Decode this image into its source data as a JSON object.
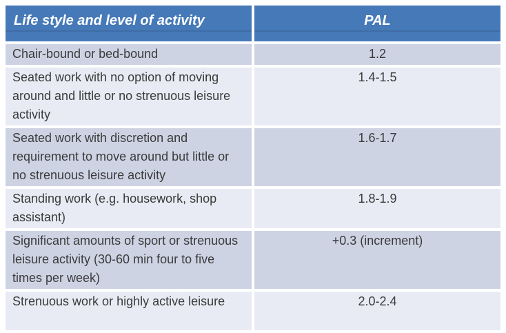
{
  "title": "Physical Activity Level (PAL) table",
  "colors": {
    "header_bg": "#4679B8",
    "header_bg_dark_line": "#3E6CA6",
    "header_text": "#FFFFFF",
    "row_odd_bg": "#CDD3E3",
    "row_even_bg": "#E8EBF3",
    "body_text": "#3B3B3B",
    "grid_gap": "#FFFFFF"
  },
  "table": {
    "columns": [
      {
        "label": "Life style and level of activity"
      },
      {
        "label": "PAL"
      }
    ],
    "rows": [
      {
        "activity": "Chair-bound or bed-bound",
        "pal": "1.2"
      },
      {
        "activity": "Seated work with no option of moving around and little or no strenuous leisure activity",
        "pal": "1.4-1.5"
      },
      {
        "activity": "Seated work with discretion and requirement to move around but little or no strenuous leisure activity",
        "pal": "1.6-1.7"
      },
      {
        "activity": "Standing work (e.g. housework, shop assistant)",
        "pal": "1.8-1.9"
      },
      {
        "activity": "Significant amounts of sport or strenuous leisure activity (30-60 min four to five times per week)",
        "pal": "+0.3 (increment)"
      },
      {
        "activity": "Strenuous work or highly active leisure",
        "pal": "2.0-2.4"
      }
    ]
  },
  "chart_data": {
    "type": "table",
    "title": "Life style and level of activity vs PAL",
    "columns": [
      "Life style and level of activity",
      "PAL"
    ],
    "rows": [
      [
        "Chair-bound or bed-bound",
        "1.2"
      ],
      [
        "Seated work with no option of moving around and little or no strenuous leisure activity",
        "1.4-1.5"
      ],
      [
        "Seated work with discretion and requirement to move around but little or no strenuous leisure activity",
        "1.6-1.7"
      ],
      [
        "Standing work (e.g. housework, shop assistant)",
        "1.8-1.9"
      ],
      [
        "Significant amounts of sport or strenuous leisure activity (30-60 min four to five times per week)",
        "+0.3 (increment)"
      ],
      [
        "Strenuous work or highly active leisure",
        "2.0-2.4"
      ]
    ]
  }
}
